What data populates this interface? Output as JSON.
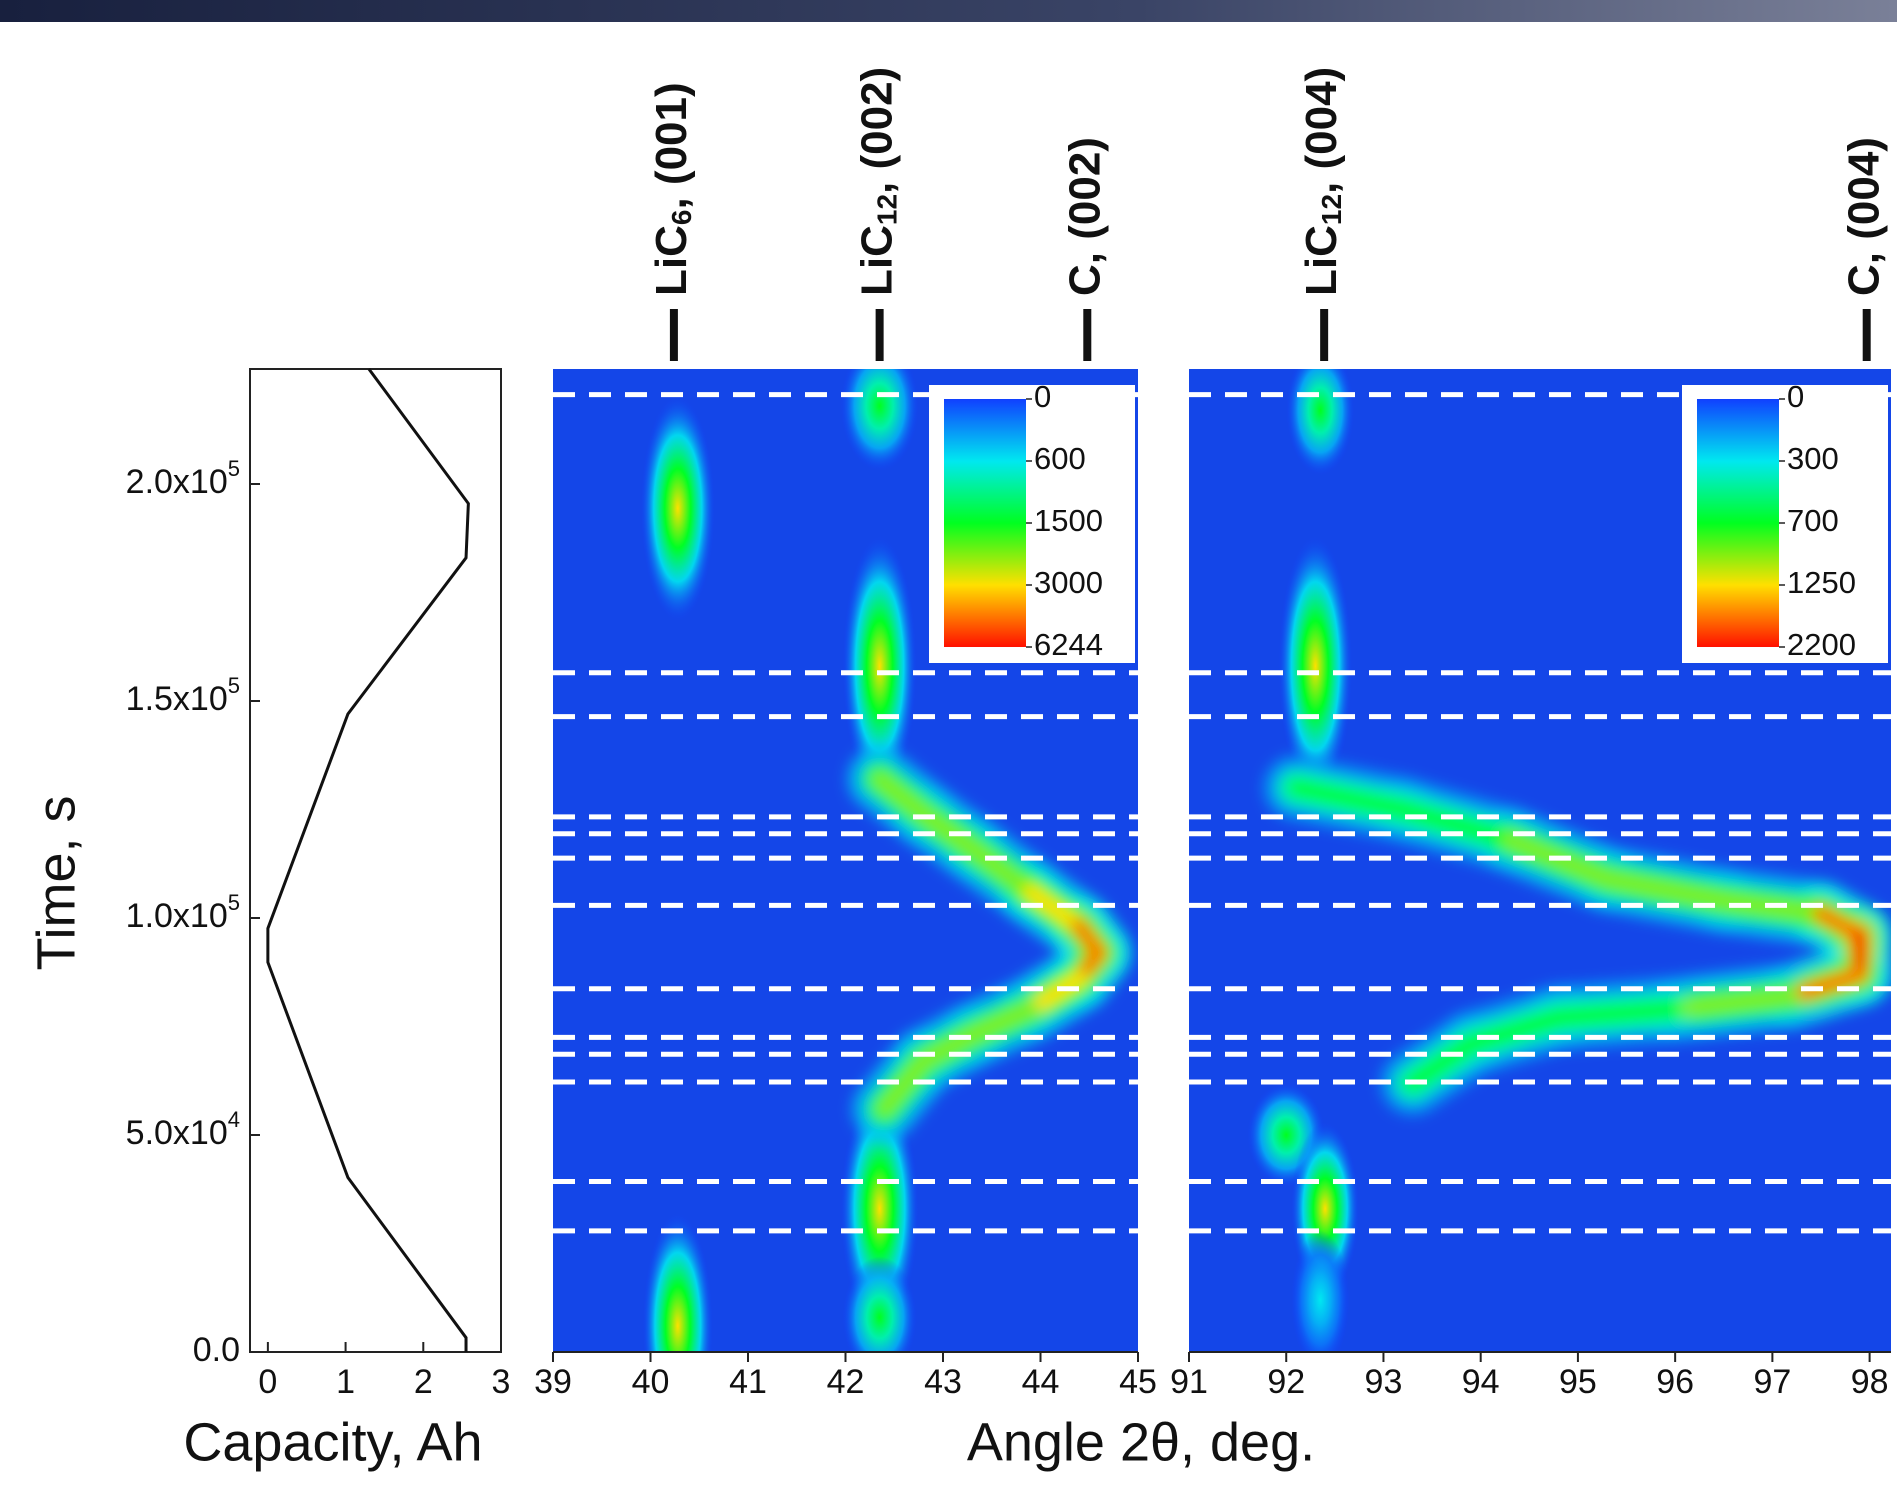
{
  "chart_data": [
    {
      "type": "line",
      "xlabel": "Capacity, Ah",
      "ylabel": "Time, s",
      "color": "#111111",
      "x": [
        2.55,
        2.55,
        1.03,
        0,
        0,
        1.03,
        2.55,
        2.58,
        1.3
      ],
      "values": [
        0,
        3300,
        40200,
        89800,
        97600,
        147000,
        183000,
        195500,
        226500
      ],
      "xlim": [
        -0.23,
        3
      ],
      "xticks": [
        0,
        1,
        2,
        3
      ],
      "ylim": [
        0,
        226500
      ],
      "yticks": [
        {
          "value": 0,
          "label": "0.0"
        },
        {
          "value": 50000,
          "label": "5.0x10",
          "exponent": "4"
        },
        {
          "value": 100000,
          "label": "1.0x10",
          "exponent": "5"
        },
        {
          "value": 150000,
          "label": "1.5x10",
          "exponent": "5"
        },
        {
          "value": 200000,
          "label": "2.0x10",
          "exponent": "5"
        }
      ]
    },
    {
      "type": "heatmap",
      "xlabel": "Angle 2θ, deg.",
      "background": "#1446e8",
      "xlim": [
        39,
        45
      ],
      "xticks": [
        39,
        40,
        41,
        42,
        43,
        44,
        45
      ],
      "ylim": [
        0,
        226500
      ],
      "colors": [
        "#1040ff",
        "#00e8f0",
        "#00ff20",
        "#ffe000",
        "#ff1000"
      ],
      "colorbar": [
        0,
        600,
        1500,
        3000,
        6244
      ],
      "peaks": [
        {
          "angle": 40.24,
          "text": "LiC",
          "sub": "6",
          "rest": ", (001)"
        },
        {
          "angle": 42.35,
          "text": "LiC",
          "sub": "12",
          "rest": ", (002)"
        },
        {
          "angle": 44.48,
          "text": "C, (002)"
        }
      ],
      "markers": [
        220600,
        156500,
        146400,
        123300,
        119400,
        113800,
        102900,
        83700,
        72500,
        68600,
        62200,
        39300,
        27900
      ],
      "features": [
        {
          "angle": 40.28,
          "time": 194400,
          "dx": 0.38,
          "dt": 26000,
          "intensity": 3000
        },
        {
          "angle": 40.28,
          "time": 6000,
          "dx": 0.36,
          "dt": 26000,
          "intensity": 3000
        },
        {
          "angle": 42.35,
          "time": 218000,
          "dx": 0.4,
          "dt": 15000,
          "intensity": 1500
        },
        {
          "angle": 42.35,
          "time": 158000,
          "dx": 0.38,
          "dt": 30000,
          "intensity": 3000
        },
        {
          "angle": 42.35,
          "time": 33000,
          "dx": 0.4,
          "dt": 28000,
          "intensity": 3000
        },
        {
          "angle": 42.35,
          "time": 8000,
          "dx": 0.38,
          "dt": 14000,
          "intensity": 1500
        }
      ],
      "ridge": {
        "angle": [
          42.35,
          42.8,
          43.3,
          43.9,
          44.4,
          44.6,
          44.4,
          43.9,
          43.3,
          42.8,
          42.4
        ],
        "time": [
          132000,
          124000,
          116000,
          106000,
          98000,
          92000,
          86000,
          79000,
          73000,
          67000,
          56000
        ],
        "intensity": [
          1500,
          3000,
          1500,
          3000,
          3000,
          6244,
          3000,
          3000,
          1500,
          3000,
          1500
        ]
      }
    },
    {
      "type": "heatmap",
      "background": "#1446e8",
      "xlim": [
        91,
        98.22
      ],
      "xticks": [
        91,
        92,
        93,
        94,
        95,
        96,
        97,
        98
      ],
      "ylim": [
        0,
        226500
      ],
      "colors": [
        "#1040ff",
        "#00e8f0",
        "#00ff20",
        "#ffe000",
        "#ff1000"
      ],
      "colorbar": [
        0,
        300,
        700,
        1250,
        2200
      ],
      "peaks": [
        {
          "angle": 92.39,
          "text": "LiC",
          "sub": "12",
          "rest": ", (004)"
        },
        {
          "angle": 97.97,
          "text": "C, (004)"
        }
      ],
      "markers": [
        220600,
        156500,
        146400,
        123300,
        119400,
        113800,
        102900,
        83700,
        72500,
        68600,
        62200,
        39300,
        27900
      ],
      "features": [
        {
          "angle": 92.35,
          "time": 217000,
          "dx": 0.35,
          "dt": 15000,
          "intensity": 700
        },
        {
          "angle": 92.3,
          "time": 158000,
          "dx": 0.38,
          "dt": 30000,
          "intensity": 1250
        },
        {
          "angle": 92.0,
          "time": 50000,
          "dx": 0.4,
          "dt": 12000,
          "intensity": 700
        },
        {
          "angle": 92.4,
          "time": 33000,
          "dx": 0.35,
          "dt": 20000,
          "intensity": 1250
        },
        {
          "angle": 92.35,
          "time": 12000,
          "dx": 0.3,
          "dt": 16000,
          "intensity": 300
        }
      ],
      "ridge": {
        "angle": [
          92.1,
          93.2,
          94.3,
          95.3,
          96.5,
          97.5,
          97.9,
          97.9,
          97.2,
          96.0,
          94.8,
          93.9,
          93.3
        ],
        "time": [
          130000,
          125000,
          118000,
          109000,
          104000,
          101000,
          96000,
          87000,
          82000,
          79000,
          77000,
          71000,
          62000
        ],
        "intensity": [
          700,
          700,
          700,
          1250,
          700,
          1250,
          2200,
          2200,
          1250,
          700,
          700,
          700,
          700
        ]
      }
    }
  ]
}
